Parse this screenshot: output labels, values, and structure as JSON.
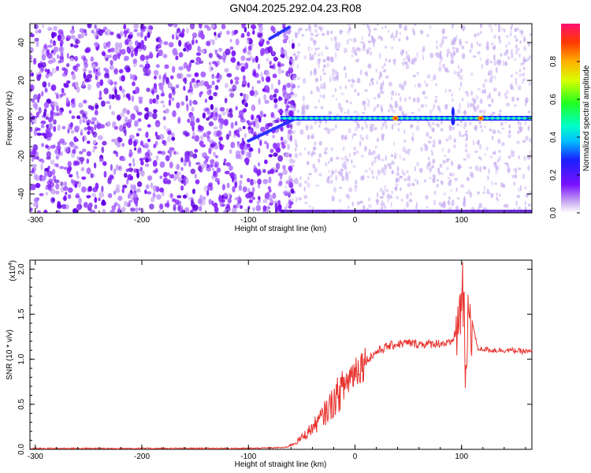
{
  "title": "GN04.2025.292.04.23.R08",
  "chart_data": [
    {
      "type": "heatmap",
      "xlabel": "Height of straight line (km)",
      "ylabel": "Frequency (Hz)",
      "xlim": [
        -305,
        166
      ],
      "ylim": [
        -50,
        50
      ],
      "xticks": [
        "-300",
        "-200",
        "-100",
        "0",
        "100"
      ],
      "yticks": [
        "-40",
        "-20",
        "0",
        "20",
        "40"
      ],
      "colorbar": {
        "label": "Normalized spectral amplitude",
        "range": [
          0,
          1
        ],
        "ticks": [
          "0.0",
          "0.2",
          "0.4",
          "0.6",
          "0.8"
        ]
      },
      "features": {
        "noise_region_x": [
          -305,
          -65
        ],
        "main_line_frequency_hz": 0,
        "main_line_x": [
          -70,
          166
        ],
        "sweep_upper": [
          [
            -80,
            42
          ],
          [
            -62,
            48
          ]
        ],
        "sweep_lower": [
          [
            -100,
            -12
          ],
          [
            -55,
            0
          ]
        ],
        "peak_amplitude_points": [
          [
            38,
            0.85
          ],
          [
            118,
            0.9
          ]
        ],
        "disturbance_x": 92
      }
    },
    {
      "type": "line",
      "xlabel": "Height of straight line (km)",
      "ylabel": "SNR (10 * v/v)",
      "y_multiplier": "(x10",
      "y_multiplier_exp": "4",
      "y_multiplier_close": ")",
      "xlim": [
        -305,
        166
      ],
      "ylim": [
        0,
        2.1
      ],
      "xticks": [
        "-300",
        "-200",
        "-100",
        "0",
        "100"
      ],
      "yticks": [
        "0.0",
        "0.5",
        "1.0",
        "1.5",
        "2.0"
      ],
      "series": [
        {
          "color": "#e8322e",
          "x": [
            -305,
            -200,
            -100,
            -65,
            -55,
            -45,
            -35,
            -25,
            -15,
            -5,
            0,
            10,
            20,
            30,
            40,
            50,
            60,
            70,
            80,
            90,
            98,
            101,
            104,
            107,
            115,
            130,
            145,
            166
          ],
          "y": [
            0.01,
            0.01,
            0.01,
            0.02,
            0.08,
            0.18,
            0.3,
            0.45,
            0.62,
            0.8,
            0.88,
            0.98,
            1.08,
            1.14,
            1.17,
            1.18,
            1.17,
            1.17,
            1.18,
            1.17,
            1.4,
            1.9,
            0.7,
            1.6,
            1.12,
            1.1,
            1.1,
            1.08
          ]
        }
      ]
    }
  ]
}
